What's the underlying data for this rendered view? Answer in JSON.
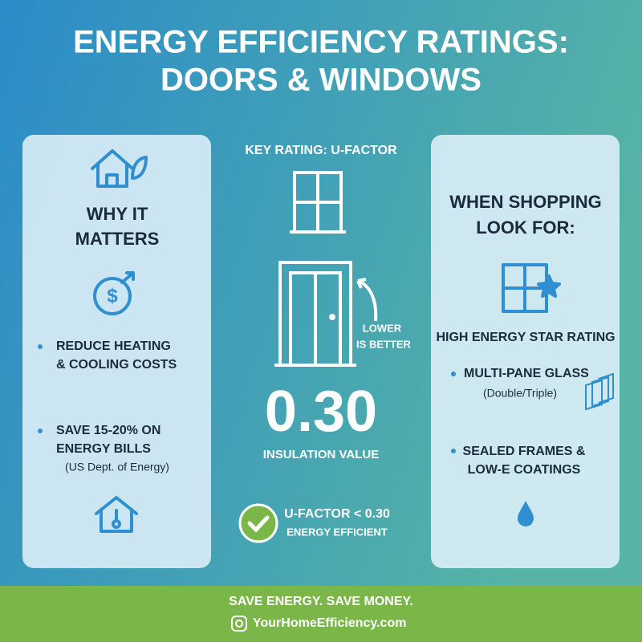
{
  "header": {
    "title": [
      "ENERGY EFFICIENCY RATINGS:",
      "DOORS & WINDOWS"
    ]
  },
  "left_panel": {
    "heading": [
      "WHY IT",
      "MATTERS"
    ],
    "items": [
      {
        "lines": [
          "REDUCE HEATING",
          "& COOLING COSTS"
        ]
      },
      {
        "lines": [
          "SAVE 15-20% ON",
          "ENERGY BILLS"
        ],
        "note": "(US Dept. of Energy)"
      }
    ]
  },
  "center": {
    "heading": "KEY RATING: U-FACTOR",
    "callout": [
      "LOWER",
      "IS BETTER"
    ],
    "value": "0.30",
    "value_caption": "INSULATION VALUE",
    "badge": [
      "U-FACTOR < 0.30",
      "ENERGY EFFICIENT"
    ]
  },
  "right_panel": {
    "heading": [
      "WHEN SHOPPING",
      "LOOK FOR:"
    ],
    "items": [
      {
        "lines": [
          "HIGH ENERGY STAR RATING"
        ]
      },
      {
        "lines": [
          "MULTI-PANE GLASS"
        ],
        "note": "(Double/Triple)"
      },
      {
        "lines": [
          "SEALED FRAMES &",
          "LOW-E COATINGS"
        ]
      }
    ]
  },
  "footer": {
    "slogan": "SAVE ENERGY. SAVE MONEY.",
    "website": "YourHomeEfficiency.com"
  }
}
